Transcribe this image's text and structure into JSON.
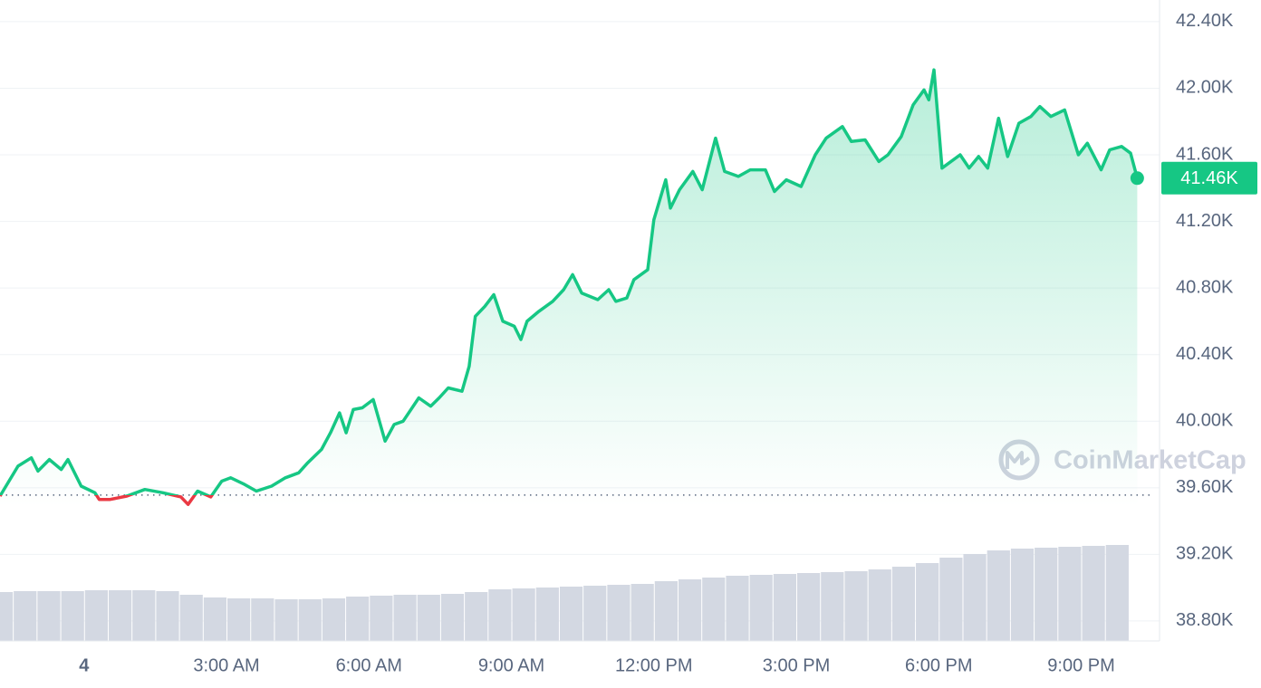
{
  "chart_data": {
    "type": "line",
    "color": "#16c784",
    "down_color": "#ea3943",
    "x": [
      -1.77,
      -1.39,
      -1.11,
      -0.97,
      -0.73,
      -0.48,
      -0.34,
      -0.06,
      0.23,
      0.32,
      0.55,
      0.9,
      1.28,
      1.66,
      2.04,
      2.19,
      2.39,
      2.67,
      2.9,
      3.09,
      3.38,
      3.63,
      3.95,
      4.24,
      4.52,
      4.71,
      5.0,
      5.19,
      5.38,
      5.52,
      5.67,
      5.86,
      6.09,
      6.34,
      6.53,
      6.72,
      7.05,
      7.3,
      7.48,
      7.67,
      7.96,
      8.11,
      8.24,
      8.44,
      8.63,
      8.82,
      9.06,
      9.2,
      9.33,
      9.58,
      9.87,
      10.1,
      10.29,
      10.48,
      10.82,
      11.05,
      11.2,
      11.43,
      11.58,
      11.87,
      12.0,
      12.25,
      12.35,
      12.54,
      12.82,
      13.02,
      13.3,
      13.49,
      13.78,
      14.03,
      14.35,
      14.54,
      14.79,
      15.1,
      15.4,
      15.63,
      15.97,
      16.16,
      16.45,
      16.74,
      16.93,
      17.21,
      17.46,
      17.69,
      17.79,
      17.9,
      18.07,
      18.45,
      18.64,
      18.84,
      19.03,
      19.26,
      19.45,
      19.69,
      19.94,
      20.13,
      20.36,
      20.65,
      20.94,
      21.13,
      21.42,
      21.6,
      21.85,
      22.04,
      22.18
    ],
    "values": [
      39550,
      39730,
      39780,
      39700,
      39770,
      39710,
      39770,
      39610,
      39570,
      39530,
      39530,
      39550,
      39590,
      39570,
      39545,
      39500,
      39580,
      39545,
      39640,
      39660,
      39620,
      39580,
      39610,
      39660,
      39690,
      39750,
      39830,
      39930,
      40050,
      39930,
      40070,
      40080,
      40130,
      39880,
      39980,
      40000,
      40140,
      40090,
      40140,
      40200,
      40180,
      40330,
      40630,
      40690,
      40760,
      40600,
      40570,
      40490,
      40600,
      40660,
      40720,
      40790,
      40880,
      40770,
      40730,
      40790,
      40720,
      40740,
      40850,
      40910,
      41210,
      41450,
      41280,
      41390,
      41500,
      41390,
      41700,
      41500,
      41470,
      41510,
      41510,
      41380,
      41450,
      41410,
      41600,
      41700,
      41770,
      41680,
      41690,
      41560,
      41600,
      41710,
      41900,
      41990,
      41930,
      42110,
      41520,
      41600,
      41520,
      41590,
      41520,
      41820,
      41590,
      41790,
      41830,
      41890,
      41830,
      41870,
      41600,
      41670,
      41510,
      41630,
      41650,
      41610,
      41460
    ],
    "reference_value": 39556,
    "current": {
      "value": 41460,
      "label": "41.46K"
    },
    "xlim": [
      -1.77,
      22.65
    ],
    "ylim": [
      38680,
      42530
    ],
    "xticks": [
      {
        "value": 0,
        "label": "4"
      },
      {
        "value": 3,
        "label": "3:00 AM"
      },
      {
        "value": 6,
        "label": "6:00 AM"
      },
      {
        "value": 9,
        "label": "9:00 AM"
      },
      {
        "value": 12,
        "label": "12:00 PM"
      },
      {
        "value": 15,
        "label": "3:00 PM"
      },
      {
        "value": 18,
        "label": "6:00 PM"
      },
      {
        "value": 21,
        "label": "9:00 PM"
      }
    ],
    "yticks": [
      {
        "value": 38800,
        "label": "38.80K"
      },
      {
        "value": 39200,
        "label": "39.20K"
      },
      {
        "value": 39600,
        "label": "39.60K"
      },
      {
        "value": 40000,
        "label": "40.00K"
      },
      {
        "value": 40400,
        "label": "40.40K"
      },
      {
        "value": 40800,
        "label": "40.80K"
      },
      {
        "value": 41200,
        "label": "41.20K"
      },
      {
        "value": 41600,
        "label": "41.60K"
      },
      {
        "value": 42000,
        "label": "42.00K"
      },
      {
        "value": 42400,
        "label": "42.40K"
      }
    ],
    "grid": true,
    "volume": {
      "color": "#d3d8e2",
      "x": [
        -1.75,
        -1.25,
        -0.75,
        -0.25,
        0.25,
        0.75,
        1.25,
        1.75,
        2.25,
        2.75,
        3.25,
        3.75,
        4.25,
        4.75,
        5.25,
        5.75,
        6.25,
        6.75,
        7.25,
        7.75,
        8.25,
        8.75,
        9.25,
        9.75,
        10.25,
        10.75,
        11.25,
        11.75,
        12.25,
        12.75,
        13.25,
        13.75,
        14.25,
        14.75,
        15.25,
        15.75,
        16.25,
        16.75,
        17.25,
        17.75,
        18.25,
        18.75,
        19.25,
        19.75,
        20.25,
        20.75,
        21.25,
        21.75
      ],
      "values": [
        54,
        55,
        55,
        55,
        56,
        56,
        56,
        55,
        51,
        48,
        47,
        47,
        46,
        46,
        47,
        49,
        50,
        51,
        51,
        52,
        54,
        57,
        58,
        59,
        60,
        61,
        62,
        63,
        66,
        68,
        70,
        72,
        73,
        74,
        75,
        76,
        77,
        79,
        82,
        86,
        92,
        96,
        100,
        102,
        103,
        104,
        105,
        106
      ]
    },
    "watermark": "CoinMarketCap"
  }
}
